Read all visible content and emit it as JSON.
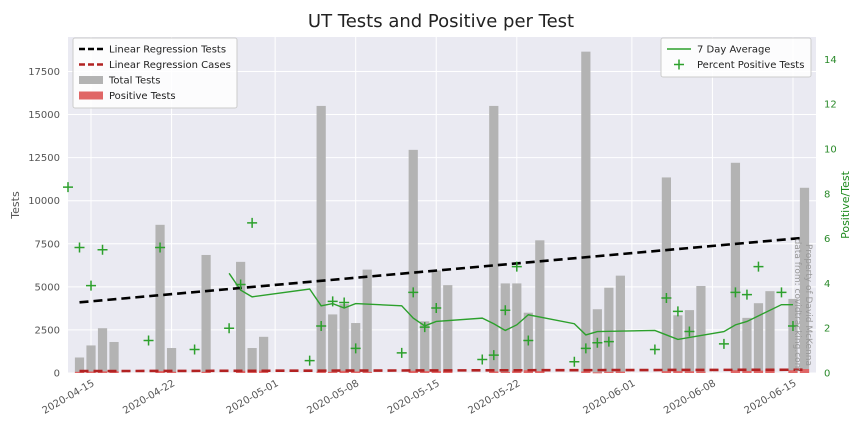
{
  "chart_data": {
    "type": "bar",
    "title": "UT Tests and Positive per Test",
    "ylabel_left": "Tests",
    "ylabel_right": "Positive/Test",
    "ylim_left": [
      0,
      19500
    ],
    "ylim_right": [
      0,
      15
    ],
    "y_ticks_left": [
      "0",
      "2500",
      "5000",
      "7500",
      "10000",
      "12500",
      "15000",
      "17500"
    ],
    "y_ticks_right": [
      "0",
      "2",
      "4",
      "6",
      "8",
      "10",
      "12",
      "14"
    ],
    "x_start": "2020-04-13",
    "x_end": "2020-06-17",
    "x_ticks": [
      "2020-04-15",
      "2020-04-22",
      "2020-05-01",
      "2020-05-08",
      "2020-05-15",
      "2020-05-22",
      "2020-06-01",
      "2020-06-08",
      "2020-06-15"
    ],
    "grid": true,
    "legend_left_placement": "top-left",
    "legend_right_placement": "top-right",
    "legend_left": [
      {
        "label": "Linear Regression Tests",
        "kind": "dashed-line",
        "color": "#000000"
      },
      {
        "label": "Linear Regression Cases",
        "kind": "dashed-line",
        "color": "#b22222"
      },
      {
        "label": "Total Tests",
        "kind": "patch",
        "color": "#b3b3b3"
      },
      {
        "label": "Positive Tests",
        "kind": "patch",
        "color": "#e06666"
      }
    ],
    "legend_right": [
      {
        "label": "7 Day Average",
        "kind": "line",
        "color": "#2ca02c"
      },
      {
        "label": "Percent Positive Tests",
        "kind": "plus",
        "color": "#2ca02c"
      }
    ],
    "colors": {
      "background": "#eaeaf2",
      "grid": "#ffffff",
      "total_bar": "#b3b3b3",
      "positive_bar": "#e06666",
      "reg_tests": "#000000",
      "reg_cases": "#b22222",
      "avg_line": "#2ca02c",
      "right_axis": "#1d8a1d"
    },
    "series": [
      {
        "name": "Total Tests",
        "points": [
          {
            "date": "2020-04-14",
            "value": 900
          },
          {
            "date": "2020-04-15",
            "value": 1600
          },
          {
            "date": "2020-04-16",
            "value": 2600
          },
          {
            "date": "2020-04-17",
            "value": 1800
          },
          {
            "date": "2020-04-21",
            "value": 8600
          },
          {
            "date": "2020-04-22",
            "value": 1450
          },
          {
            "date": "2020-04-25",
            "value": 6850
          },
          {
            "date": "2020-04-28",
            "value": 6450
          },
          {
            "date": "2020-04-29",
            "value": 1450
          },
          {
            "date": "2020-04-30",
            "value": 2100
          },
          {
            "date": "2020-05-05",
            "value": 15500
          },
          {
            "date": "2020-05-06",
            "value": 3400
          },
          {
            "date": "2020-05-07",
            "value": 4000
          },
          {
            "date": "2020-05-08",
            "value": 2900
          },
          {
            "date": "2020-05-09",
            "value": 6000
          },
          {
            "date": "2020-05-13",
            "value": 12950
          },
          {
            "date": "2020-05-14",
            "value": 3000
          },
          {
            "date": "2020-05-15",
            "value": 5950
          },
          {
            "date": "2020-05-16",
            "value": 5100
          },
          {
            "date": "2020-05-20",
            "value": 15500
          },
          {
            "date": "2020-05-21",
            "value": 5200
          },
          {
            "date": "2020-05-22",
            "value": 5200
          },
          {
            "date": "2020-05-23",
            "value": 3500
          },
          {
            "date": "2020-05-24",
            "value": 7700
          },
          {
            "date": "2020-05-28",
            "value": 18650
          },
          {
            "date": "2020-05-29",
            "value": 3700
          },
          {
            "date": "2020-05-30",
            "value": 4950
          },
          {
            "date": "2020-05-31",
            "value": 5650
          },
          {
            "date": "2020-06-04",
            "value": 11350
          },
          {
            "date": "2020-06-05",
            "value": 3350
          },
          {
            "date": "2020-06-06",
            "value": 3650
          },
          {
            "date": "2020-06-07",
            "value": 5050
          },
          {
            "date": "2020-06-10",
            "value": 12200
          },
          {
            "date": "2020-06-11",
            "value": 3200
          },
          {
            "date": "2020-06-12",
            "value": 4050
          },
          {
            "date": "2020-06-13",
            "value": 4750
          },
          {
            "date": "2020-06-15",
            "value": 4300
          },
          {
            "date": "2020-06-16",
            "value": 10750
          }
        ]
      },
      {
        "name": "Positive Tests",
        "values_note_free": true,
        "points": [
          {
            "date": "2020-04-14",
            "value": 70
          },
          {
            "date": "2020-04-15",
            "value": 90
          },
          {
            "date": "2020-04-16",
            "value": 100
          },
          {
            "date": "2020-04-17",
            "value": 100
          },
          {
            "date": "2020-04-21",
            "value": 120
          },
          {
            "date": "2020-04-22",
            "value": 80
          },
          {
            "date": "2020-04-25",
            "value": 75
          },
          {
            "date": "2020-04-28",
            "value": 130
          },
          {
            "date": "2020-04-29",
            "value": 70
          },
          {
            "date": "2020-04-30",
            "value": 140
          },
          {
            "date": "2020-05-05",
            "value": 90
          },
          {
            "date": "2020-05-06",
            "value": 70
          },
          {
            "date": "2020-05-07",
            "value": 130
          },
          {
            "date": "2020-05-08",
            "value": 90
          },
          {
            "date": "2020-05-09",
            "value": 70
          },
          {
            "date": "2020-05-13",
            "value": 130
          },
          {
            "date": "2020-05-14",
            "value": 110
          },
          {
            "date": "2020-05-15",
            "value": 120
          },
          {
            "date": "2020-05-16",
            "value": 150
          },
          {
            "date": "2020-05-20",
            "value": 90
          },
          {
            "date": "2020-05-21",
            "value": 60
          },
          {
            "date": "2020-05-22",
            "value": 140
          },
          {
            "date": "2020-05-23",
            "value": 160
          },
          {
            "date": "2020-05-24",
            "value": 110
          },
          {
            "date": "2020-05-28",
            "value": 90
          },
          {
            "date": "2020-05-29",
            "value": 40
          },
          {
            "date": "2020-05-30",
            "value": 70
          },
          {
            "date": "2020-05-31",
            "value": 80
          },
          {
            "date": "2020-06-04",
            "value": 110
          },
          {
            "date": "2020-06-05",
            "value": 110
          },
          {
            "date": "2020-06-06",
            "value": 100
          },
          {
            "date": "2020-06-07",
            "value": 90
          },
          {
            "date": "2020-06-10",
            "value": 160
          },
          {
            "date": "2020-06-11",
            "value": 120
          },
          {
            "date": "2020-06-12",
            "value": 140
          },
          {
            "date": "2020-06-13",
            "value": 220
          },
          {
            "date": "2020-06-15",
            "value": 160
          },
          {
            "date": "2020-06-16",
            "value": 230
          }
        ]
      },
      {
        "name": "Percent Positive Tests",
        "axis": "right",
        "points": [
          {
            "date": "2020-04-13",
            "value": 8.3
          },
          {
            "date": "2020-04-14",
            "value": 5.6
          },
          {
            "date": "2020-04-15",
            "value": 3.9
          },
          {
            "date": "2020-04-16",
            "value": 5.5
          },
          {
            "date": "2020-04-20",
            "value": 1.45
          },
          {
            "date": "2020-04-21",
            "value": 5.6
          },
          {
            "date": "2020-04-24",
            "value": 1.05
          },
          {
            "date": "2020-04-27",
            "value": 2.0
          },
          {
            "date": "2020-04-28",
            "value": 3.95
          },
          {
            "date": "2020-04-29",
            "value": 6.7
          },
          {
            "date": "2020-05-04",
            "value": 0.55
          },
          {
            "date": "2020-05-05",
            "value": 2.1
          },
          {
            "date": "2020-05-06",
            "value": 3.2
          },
          {
            "date": "2020-05-07",
            "value": 3.15
          },
          {
            "date": "2020-05-08",
            "value": 1.1
          },
          {
            "date": "2020-05-12",
            "value": 0.9
          },
          {
            "date": "2020-05-13",
            "value": 3.6
          },
          {
            "date": "2020-05-14",
            "value": 2.05
          },
          {
            "date": "2020-05-15",
            "value": 2.9
          },
          {
            "date": "2020-05-19",
            "value": 0.6
          },
          {
            "date": "2020-05-20",
            "value": 0.8
          },
          {
            "date": "2020-05-21",
            "value": 2.8
          },
          {
            "date": "2020-05-22",
            "value": 4.75
          },
          {
            "date": "2020-05-23",
            "value": 1.45
          },
          {
            "date": "2020-05-27",
            "value": 0.5
          },
          {
            "date": "2020-05-28",
            "value": 1.1
          },
          {
            "date": "2020-05-29",
            "value": 1.35
          },
          {
            "date": "2020-05-30",
            "value": 1.4
          },
          {
            "date": "2020-06-03",
            "value": 1.05
          },
          {
            "date": "2020-06-04",
            "value": 3.35
          },
          {
            "date": "2020-06-05",
            "value": 2.75
          },
          {
            "date": "2020-06-06",
            "value": 1.85
          },
          {
            "date": "2020-06-09",
            "value": 1.3
          },
          {
            "date": "2020-06-10",
            "value": 3.6
          },
          {
            "date": "2020-06-11",
            "value": 3.5
          },
          {
            "date": "2020-06-12",
            "value": 4.75
          },
          {
            "date": "2020-06-14",
            "value": 3.6
          },
          {
            "date": "2020-06-15",
            "value": 2.1
          }
        ]
      },
      {
        "name": "7 Day Average",
        "axis": "right",
        "points": [
          {
            "date": "2020-04-27",
            "value": 4.45
          },
          {
            "date": "2020-04-28",
            "value": 3.7
          },
          {
            "date": "2020-04-29",
            "value": 3.4
          },
          {
            "date": "2020-05-04",
            "value": 3.75
          },
          {
            "date": "2020-05-05",
            "value": 3.0
          },
          {
            "date": "2020-05-06",
            "value": 3.1
          },
          {
            "date": "2020-05-07",
            "value": 2.9
          },
          {
            "date": "2020-05-08",
            "value": 3.1
          },
          {
            "date": "2020-05-12",
            "value": 3.0
          },
          {
            "date": "2020-05-13",
            "value": 2.45
          },
          {
            "date": "2020-05-14",
            "value": 2.1
          },
          {
            "date": "2020-05-15",
            "value": 2.3
          },
          {
            "date": "2020-05-19",
            "value": 2.45
          },
          {
            "date": "2020-05-20",
            "value": 2.2
          },
          {
            "date": "2020-05-21",
            "value": 1.9
          },
          {
            "date": "2020-05-22",
            "value": 2.15
          },
          {
            "date": "2020-05-23",
            "value": 2.6
          },
          {
            "date": "2020-05-27",
            "value": 2.2
          },
          {
            "date": "2020-05-28",
            "value": 1.7
          },
          {
            "date": "2020-05-29",
            "value": 1.85
          },
          {
            "date": "2020-06-03",
            "value": 1.9
          },
          {
            "date": "2020-06-04",
            "value": 1.7
          },
          {
            "date": "2020-06-05",
            "value": 1.5
          },
          {
            "date": "2020-06-09",
            "value": 1.85
          },
          {
            "date": "2020-06-10",
            "value": 2.15
          },
          {
            "date": "2020-06-11",
            "value": 2.3
          },
          {
            "date": "2020-06-12",
            "value": 2.55
          },
          {
            "date": "2020-06-14",
            "value": 3.05
          },
          {
            "date": "2020-06-15",
            "value": 3.05
          }
        ]
      },
      {
        "name": "Linear Regression Tests",
        "start": {
          "date": "2020-04-14",
          "value": 4100
        },
        "end": {
          "date": "2020-06-16",
          "value": 7850
        }
      },
      {
        "name": "Linear Regression Cases",
        "start": {
          "date": "2020-04-14",
          "value": 110
        },
        "end": {
          "date": "2020-06-16",
          "value": 190
        }
      }
    ],
    "watermark": [
      "Property of David McKenna",
      "data from: covidtracking.com"
    ]
  }
}
